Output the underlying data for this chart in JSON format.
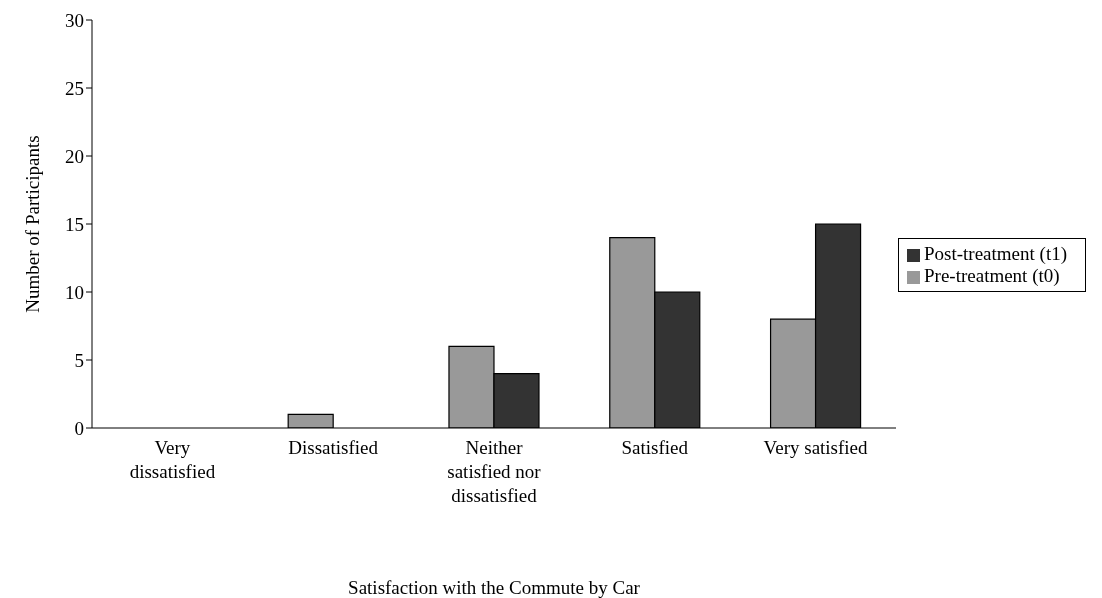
{
  "chart_data": {
    "type": "bar",
    "xlabel": "Satisfaction with the Commute by Car",
    "ylabel": "Number of Participants",
    "categories": [
      "Very dissatisfied",
      "Dissatisfied",
      "Neither satisfied nor dissatisfied",
      "Satisfied",
      "Very satisfied"
    ],
    "series": [
      {
        "name": "Pre-treatment (t0)",
        "color": "#999999",
        "values": [
          0,
          1,
          6,
          14,
          8
        ]
      },
      {
        "name": "Post-treatment (t1)",
        "color": "#333333",
        "values": [
          0,
          0,
          4,
          10,
          15
        ]
      }
    ],
    "ylim": [
      0,
      30
    ],
    "yticks": [
      0,
      5,
      10,
      15,
      20,
      25,
      30
    ],
    "grid": false,
    "legend": "right"
  }
}
